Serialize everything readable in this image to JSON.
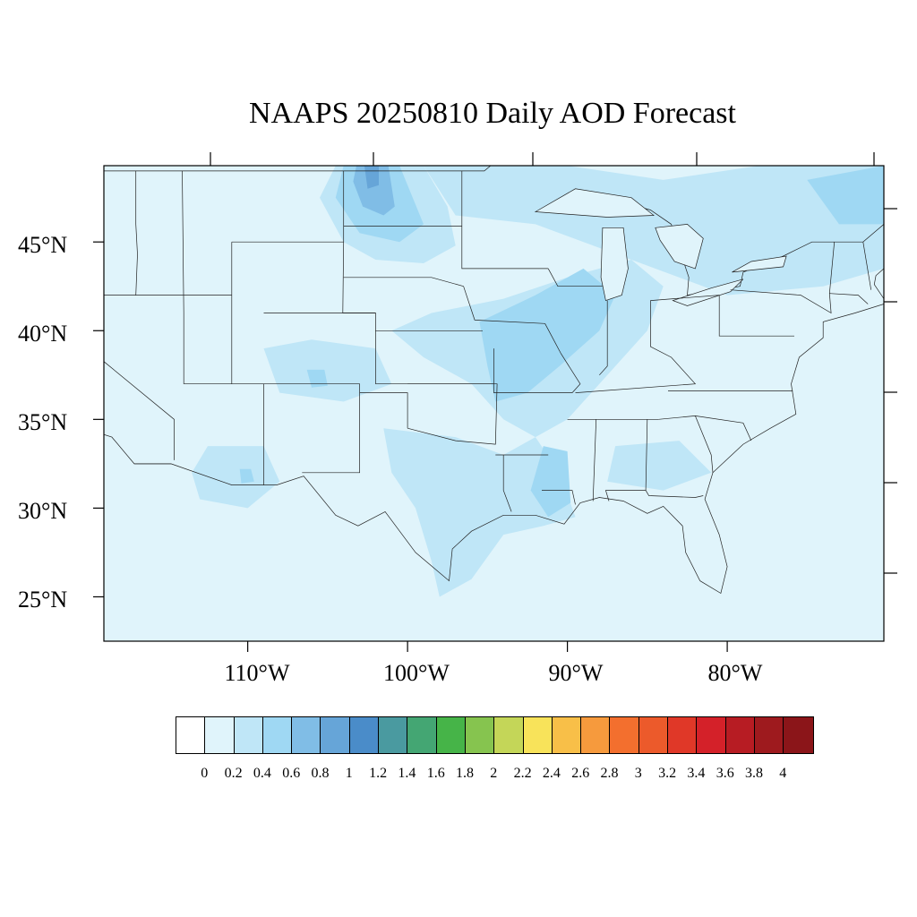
{
  "title": "NAAPS 20250810 Daily AOD Forecast",
  "map": {
    "projection": "Mercator-like lat/lon",
    "lat_range": [
      22.5,
      49.3
    ],
    "lon_range": [
      -119,
      -70.2
    ],
    "lat_labels": [
      "45°N",
      "40°N",
      "35°N",
      "30°N",
      "25°N"
    ],
    "lon_labels": [
      "110°W",
      "100°W",
      "90°W",
      "80°W"
    ],
    "features": [
      "coastlines",
      "state-boundaries",
      "country-boundaries",
      "great-lakes"
    ],
    "ocean_and_land_base_color": "#e0f4fb"
  },
  "colorbar": {
    "levels": [
      "0",
      "0.2",
      "0.4",
      "0.6",
      "0.8",
      "1",
      "1.2",
      "1.4",
      "1.6",
      "1.8",
      "2",
      "2.2",
      "2.4",
      "2.6",
      "2.8",
      "3",
      "3.2",
      "3.4",
      "3.6",
      "3.8",
      "4"
    ],
    "colors": [
      "#ffffff",
      "#e0f4fb",
      "#bfe6f7",
      "#9fd8f3",
      "#80bde6",
      "#66a5d8",
      "#4a8cc9",
      "#4a9aa0",
      "#44a673",
      "#46b448",
      "#86c44f",
      "#c4d658",
      "#f8e35a",
      "#f8bf48",
      "#f69a3d",
      "#f36f2e",
      "#ec5a2b",
      "#e03828",
      "#d42129",
      "#b71c23",
      "#9e1a1e",
      "#8b1519"
    ]
  },
  "aod_field": [
    {
      "region": "Northern Plains (ND/SD/MT border)",
      "aod_max": 0.9
    },
    {
      "region": "Iowa / Missouri / Illinois corridor",
      "aod_max": 0.45
    },
    {
      "region": "Southern Great Lakes / Indiana",
      "aod_max": 0.4
    },
    {
      "region": "Colorado Rockies",
      "aod_max": 0.5
    },
    {
      "region": "Arizona",
      "aod_max": 0.5
    },
    {
      "region": "Lower Mississippi Valley / Louisiana",
      "aod_max": 0.4
    },
    {
      "region": "East Texas Gulf Coast",
      "aod_max": 0.3
    },
    {
      "region": "Northeast / Canadian Maritimes",
      "aod_max": 0.4
    }
  ]
}
